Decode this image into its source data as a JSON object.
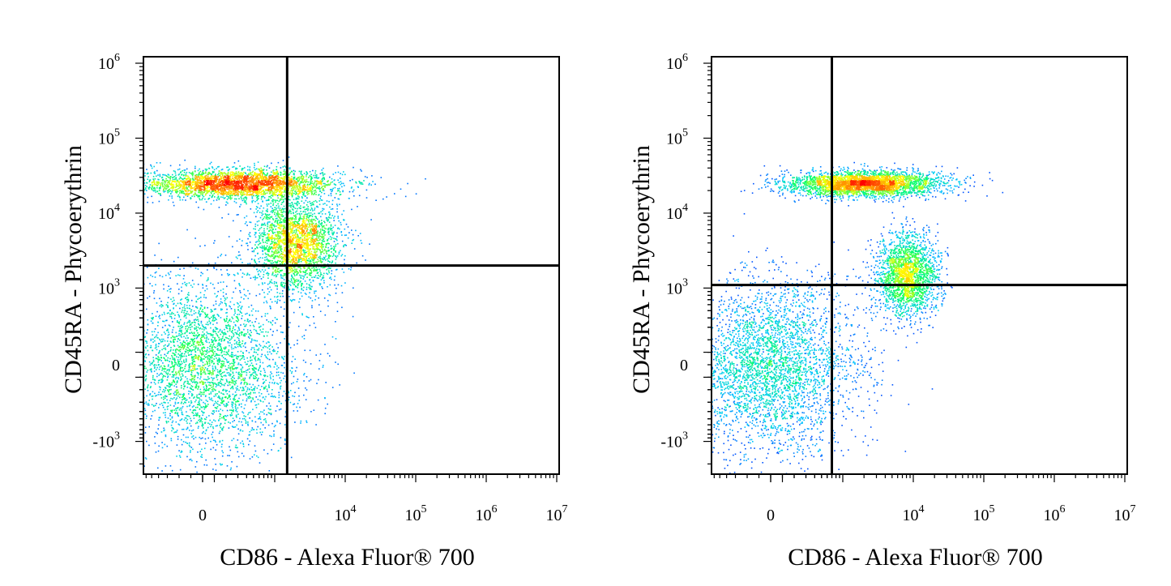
{
  "chart_data": [
    {
      "type": "scatter",
      "xlabel": "CD86 - Alexa Fluor® 700",
      "ylabel": "CD45RA - Phycoerythrin",
      "x_scale": "biexponential",
      "y_scale": "biexponential",
      "x_ticks": [
        {
          "value": 0,
          "base": "0",
          "exp": ""
        },
        {
          "value": 10000,
          "base": "10",
          "exp": "4"
        },
        {
          "value": 100000,
          "base": "10",
          "exp": "5"
        },
        {
          "value": 1000000,
          "base": "10",
          "exp": "6"
        },
        {
          "value": 10000000,
          "base": "10",
          "exp": "7"
        }
      ],
      "y_ticks": [
        {
          "value": -1000,
          "base": "-10",
          "exp": "3"
        },
        {
          "value": 0,
          "base": "0",
          "exp": ""
        },
        {
          "value": 1000,
          "base": "10",
          "exp": "3"
        },
        {
          "value": 10000,
          "base": "10",
          "exp": "4"
        },
        {
          "value": 100000,
          "base": "10",
          "exp": "5"
        },
        {
          "value": 1000000,
          "base": "10",
          "exp": "6"
        }
      ],
      "quadrant_gate": {
        "x": 1500,
        "y": 2000
      },
      "populations": [
        {
          "cx": 300,
          "cy": 25000,
          "sx": 1500,
          "sy": 7000,
          "weight": 0.34
        },
        {
          "cx": 0,
          "cy": 0,
          "sx": 500,
          "sy": 400,
          "weight": 0.38
        },
        {
          "cx": 2000,
          "cy": 4000,
          "sx": 2500,
          "sy": 5000,
          "weight": 0.28
        }
      ],
      "color_scale": [
        "#0000ff",
        "#00c8ff",
        "#00ff66",
        "#ffff00",
        "#ff8000",
        "#ff0000"
      ],
      "grid": false,
      "legend": "none"
    },
    {
      "type": "scatter",
      "xlabel": "CD86 - Alexa Fluor® 700",
      "ylabel": "CD45RA - Phycoerythrin",
      "x_scale": "biexponential",
      "y_scale": "biexponential",
      "x_ticks": [
        {
          "value": 0,
          "base": "0",
          "exp": ""
        },
        {
          "value": 10000,
          "base": "10",
          "exp": "4"
        },
        {
          "value": 100000,
          "base": "10",
          "exp": "5"
        },
        {
          "value": 1000000,
          "base": "10",
          "exp": "6"
        },
        {
          "value": 10000000,
          "base": "10",
          "exp": "7"
        }
      ],
      "y_ticks": [
        {
          "value": -1000,
          "base": "-10",
          "exp": "3"
        },
        {
          "value": 0,
          "base": "0",
          "exp": ""
        },
        {
          "value": 1000,
          "base": "10",
          "exp": "3"
        },
        {
          "value": 10000,
          "base": "10",
          "exp": "4"
        },
        {
          "value": 100000,
          "base": "10",
          "exp": "5"
        },
        {
          "value": 1000000,
          "base": "10",
          "exp": "6"
        }
      ],
      "quadrant_gate": {
        "x": 700,
        "y": 1100
      },
      "populations": [
        {
          "cx": 2000,
          "cy": 25000,
          "sx": 6000,
          "sy": 6000,
          "weight": 0.36
        },
        {
          "cx": 0,
          "cy": 0,
          "sx": 450,
          "sy": 400,
          "weight": 0.4
        },
        {
          "cx": 8000,
          "cy": 1500,
          "sx": 6000,
          "sy": 1500,
          "weight": 0.24
        }
      ],
      "color_scale": [
        "#0000ff",
        "#00c8ff",
        "#00ff66",
        "#ffff00",
        "#ff8000",
        "#ff0000"
      ],
      "grid": false,
      "legend": "none"
    }
  ]
}
